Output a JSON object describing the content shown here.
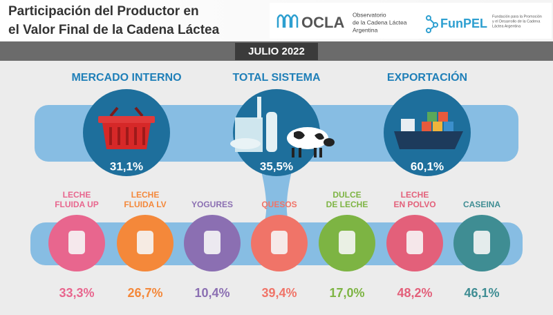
{
  "header": {
    "title_lines": [
      "Participación del Productor en",
      "el Valor Final de la Cadena Láctea"
    ],
    "logos": [
      {
        "name": "OCLA",
        "lines": [
          "Observatorio",
          "de la Cadena Láctea",
          "Argentina"
        ]
      },
      {
        "name": "FunPEL",
        "lines": [
          "Fundación para la Promoción",
          "y el Desarrollo de la Cadena",
          "Láctea Argentina"
        ]
      }
    ]
  },
  "period": "JULIO 2022",
  "markets": [
    {
      "label": "MERCADO INTERNO",
      "value": "31,1%"
    },
    {
      "label": "TOTAL SISTEMA",
      "value": "35,5%"
    },
    {
      "label": "EXPORTACIÓN",
      "value": "60,1%"
    }
  ],
  "products": [
    {
      "label_lines": [
        "LECHE",
        "FLUIDA UP"
      ],
      "value": "33,3%",
      "color": "#e8668e"
    },
    {
      "label_lines": [
        "LECHE",
        "FLUIDA LV"
      ],
      "value": "26,7%",
      "color": "#f4883a"
    },
    {
      "label_lines": [
        "YOGURES"
      ],
      "value": "10,4%",
      "color": "#8b6fb2"
    },
    {
      "label_lines": [
        "QUESOS"
      ],
      "value": "39,4%",
      "color": "#f07468"
    },
    {
      "label_lines": [
        "DULCE",
        "DE LECHE"
      ],
      "value": "17,0%",
      "color": "#7db443"
    },
    {
      "label_lines": [
        "LECHE",
        "EN POLVO"
      ],
      "value": "48,2%",
      "color": "#e3607a"
    },
    {
      "label_lines": [
        "CASEINA"
      ],
      "value": "46,1%",
      "color": "#3f8d93"
    }
  ]
}
